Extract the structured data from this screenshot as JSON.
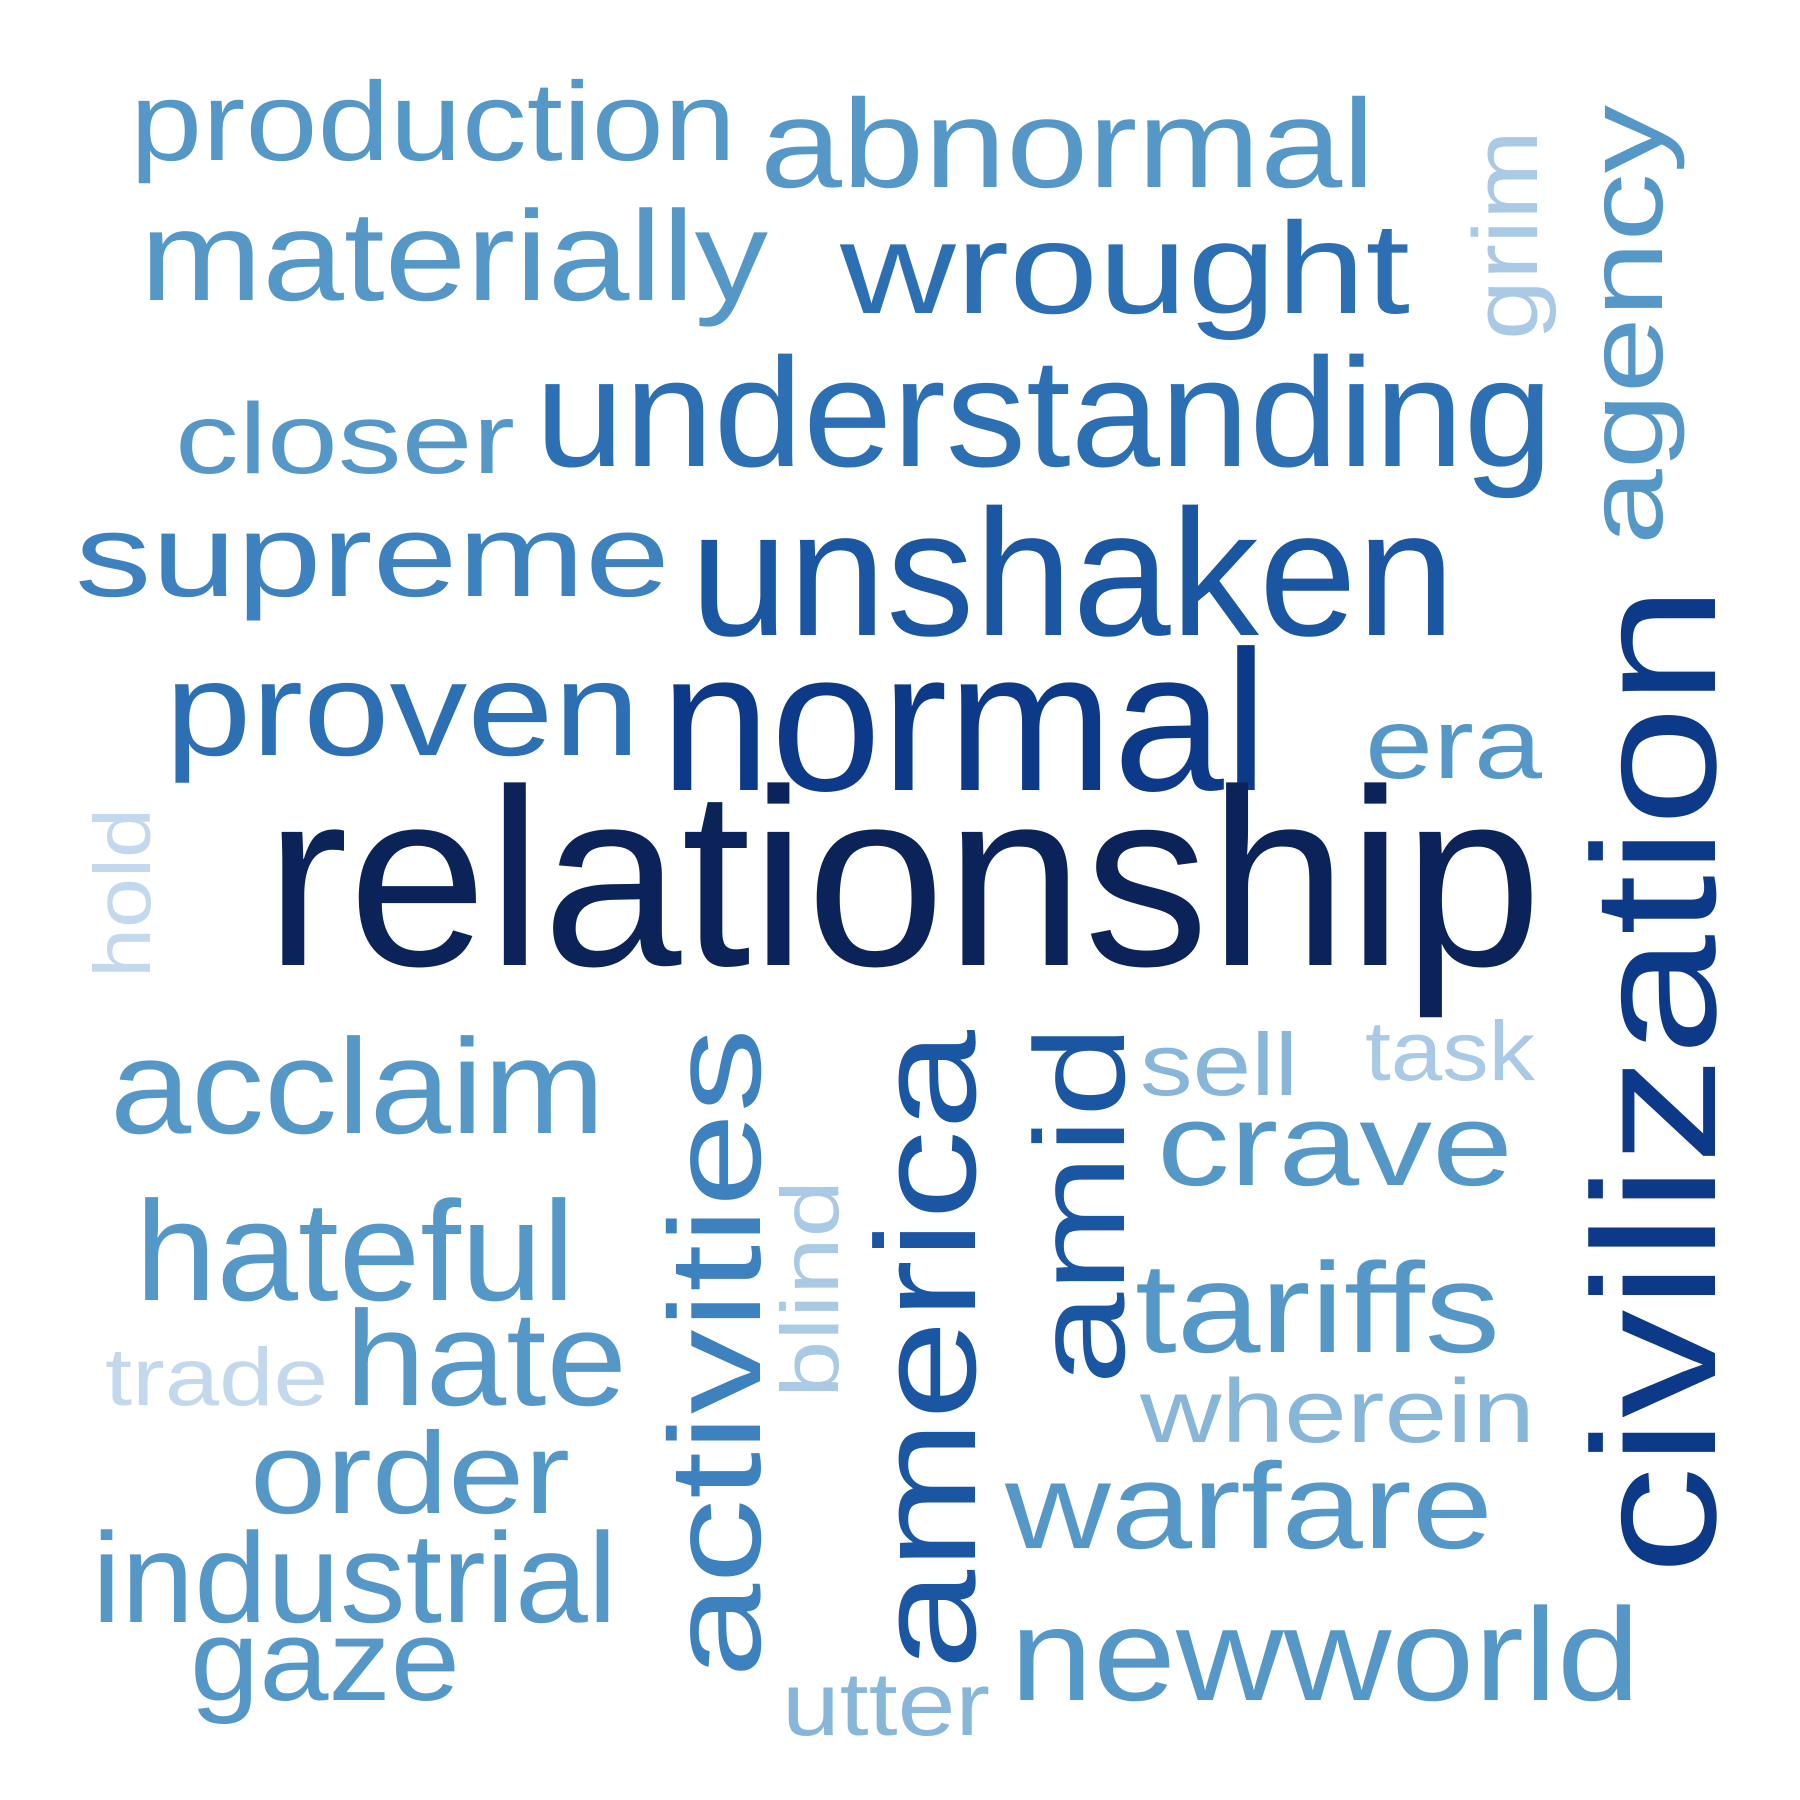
{
  "colors": {
    "darkest": "#0b2358",
    "very_dark": "#0d3a88",
    "dark": "#1b56a3",
    "mid_dark": "#2c6fb3",
    "mid": "#3d82be",
    "mid_light": "#5598c7",
    "light": "#88b6d9",
    "lighter": "#a9c9e4",
    "lightest": "#c3d8ec"
  },
  "words": {
    "production": "production",
    "abnormal": "abnormal",
    "materially": "materially",
    "wrought": "wrought",
    "grim": "grim",
    "agency": "agency",
    "understanding": "understanding",
    "closer": "closer",
    "supreme": "supreme",
    "unshaken": "unshaken",
    "proven": "proven",
    "normal": "normal",
    "era": "era",
    "civilization": "civilization",
    "hold": "hold",
    "relationship": "relationship",
    "acclaim": "acclaim",
    "activities": "activities",
    "america": "america",
    "amid": "amid",
    "sell": "sell",
    "task": "task",
    "crave": "crave",
    "hateful": "hateful",
    "blind": "blind",
    "tariffs": "tariffs",
    "trade": "trade",
    "hate": "hate",
    "wherein": "wherein",
    "order": "order",
    "warfare": "warfare",
    "industrial": "industrial",
    "gaze": "gaze",
    "newworld": "newworld",
    "utter": "utter"
  }
}
